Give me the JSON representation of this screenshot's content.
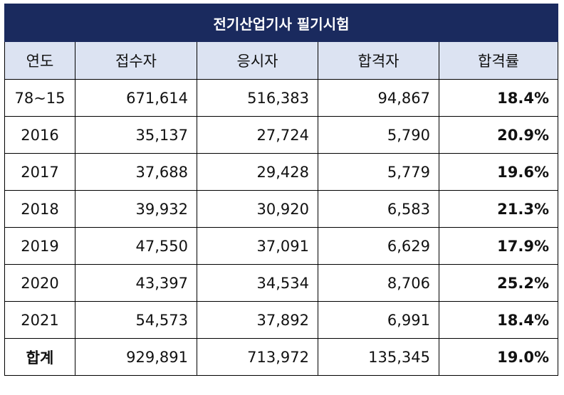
{
  "title": "전기산업기사 필기시험",
  "headers": [
    "연도",
    "접수자",
    "응시자",
    "합격자",
    "합격률"
  ],
  "rows": [
    {
      "year": "78~15",
      "applicants": "671,614",
      "examinees": "516,383",
      "passers": "94,867",
      "rate": "18.4%"
    },
    {
      "year": "2016",
      "applicants": "35,137",
      "examinees": "27,724",
      "passers": "5,790",
      "rate": "20.9%"
    },
    {
      "year": "2017",
      "applicants": "37,688",
      "examinees": "29,428",
      "passers": "5,779",
      "rate": "19.6%"
    },
    {
      "year": "2018",
      "applicants": "39,932",
      "examinees": "30,920",
      "passers": "6,583",
      "rate": "21.3%"
    },
    {
      "year": "2019",
      "applicants": "47,550",
      "examinees": "37,091",
      "passers": "6,629",
      "rate": "17.9%"
    },
    {
      "year": "2020",
      "applicants": "43,397",
      "examinees": "34,534",
      "passers": "8,706",
      "rate": "25.2%"
    },
    {
      "year": "2021",
      "applicants": "54,573",
      "examinees": "37,892",
      "passers": "6,991",
      "rate": "18.4%"
    }
  ],
  "total": {
    "label": "합계",
    "applicants": "929,891",
    "examinees": "713,972",
    "passers": "135,345",
    "rate": "19.0%"
  },
  "colors": {
    "title_bg": "#1a2a5e",
    "header_bg": "#dce3f2"
  }
}
